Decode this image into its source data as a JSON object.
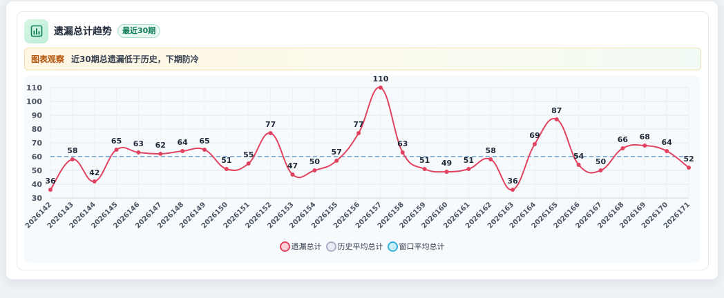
{
  "header": {
    "title": "遗漏总计趋势",
    "badge": "最近30期"
  },
  "observation": {
    "tag": "图表观察",
    "text": "近30期总遗漏低于历史，下期防冷"
  },
  "icons": {
    "header": "bar-chart-icon"
  },
  "colors": {
    "main_line": "#e0425f",
    "history_avg": "#6b9bc3",
    "legend_history_fill": "#e9ecf3",
    "legend_history_border": "#a9b1c6",
    "legend_window_fill": "#c9eef9",
    "legend_window_border": "#36b0d9"
  },
  "chart_data": {
    "type": "line",
    "title": "",
    "xlabel": "",
    "ylabel": "",
    "ylim": [
      30,
      110
    ],
    "yticks": [
      30,
      40,
      50,
      60,
      70,
      80,
      90,
      100,
      110
    ],
    "categories": [
      "2026142",
      "2026143",
      "2026144",
      "2026145",
      "2026146",
      "2026147",
      "2026148",
      "2026149",
      "2026150",
      "2026151",
      "2026152",
      "2026153",
      "2026154",
      "2026155",
      "2026156",
      "2026157",
      "2026158",
      "2026159",
      "2026160",
      "2026161",
      "2026162",
      "2026163",
      "2026164",
      "2026165",
      "2026166",
      "2026167",
      "2026168",
      "2026169",
      "2026170",
      "2026171"
    ],
    "series": [
      {
        "name": "遗漏总计",
        "values": [
          36,
          58,
          42,
          65,
          63,
          62,
          64,
          65,
          51,
          55,
          77,
          47,
          50,
          57,
          77,
          110,
          63,
          51,
          49,
          51,
          58,
          36,
          69,
          87,
          54,
          50,
          66,
          68,
          64,
          52
        ]
      },
      {
        "name": "历史平均总计",
        "value": 60
      },
      {
        "name": "窗口平均总计"
      }
    ],
    "grid": true,
    "legend_position": "bottom-center"
  }
}
